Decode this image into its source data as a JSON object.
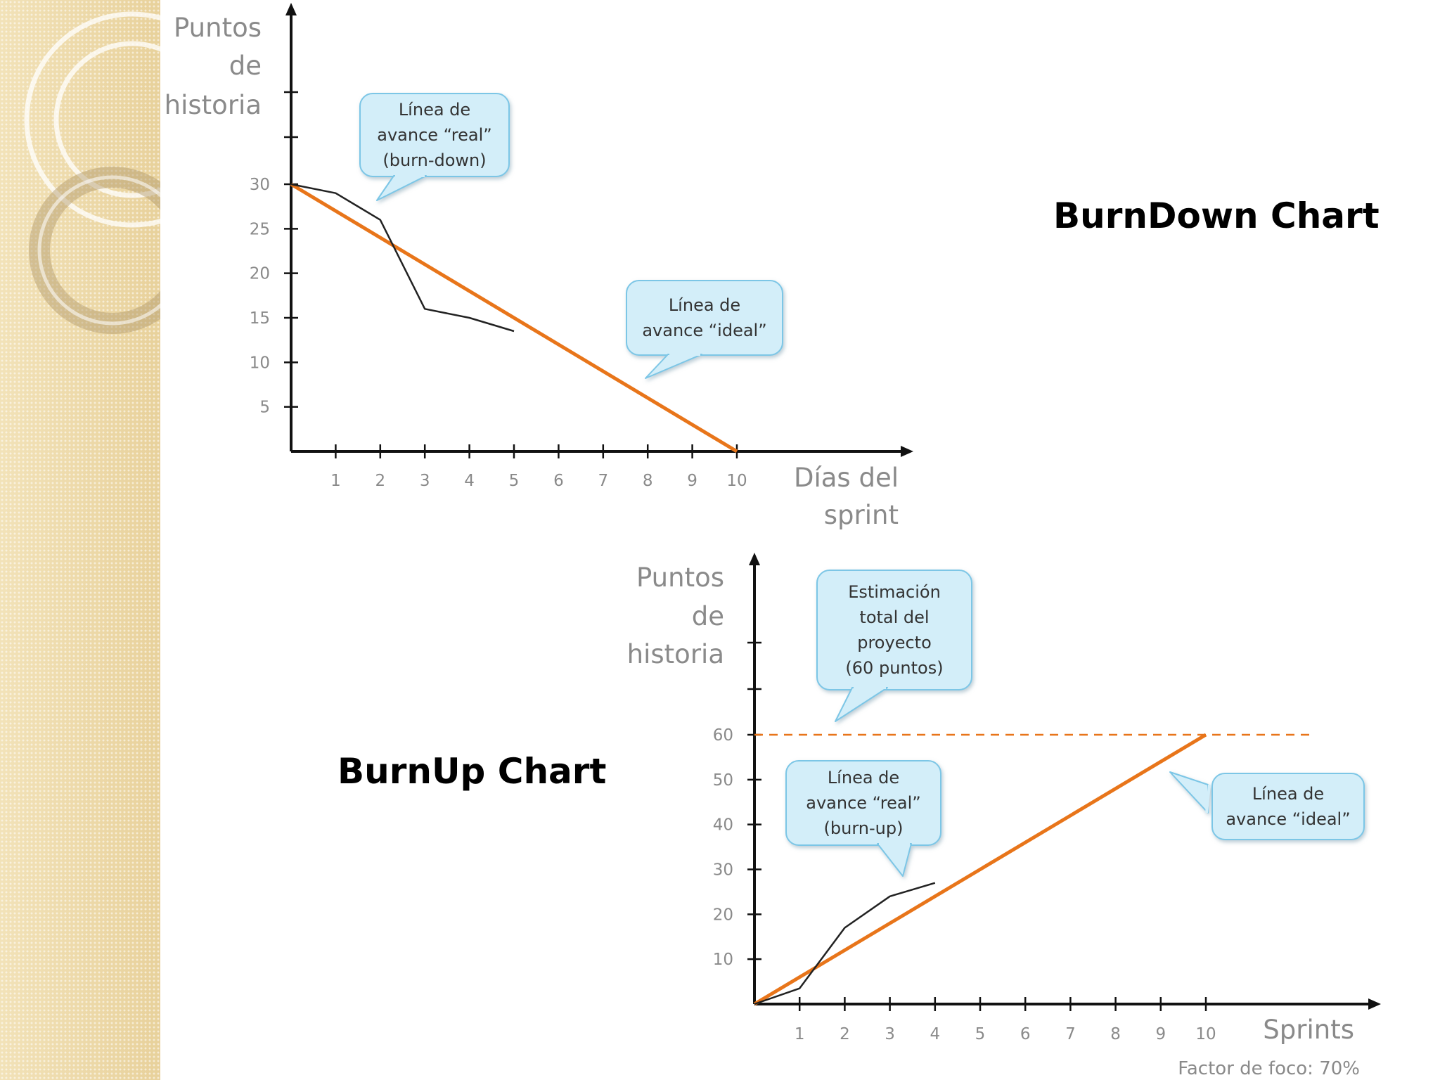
{
  "titles": {
    "burndown": "BurnDown Chart",
    "burnup": "BurnUp Chart"
  },
  "footnote": "Factor de foco: 70%",
  "colors": {
    "ideal_line": "#e8751a",
    "real_line": "#222222",
    "callout_fill": "#d3eef9",
    "callout_stroke": "#7cc6e6",
    "sidebar": "#efdcae"
  },
  "chart_data": [
    {
      "type": "line",
      "title": "BurnDown Chart",
      "ylabel": [
        "Puntos",
        "de",
        "historia"
      ],
      "xlabel": [
        "Días del",
        "sprint"
      ],
      "x": [
        0,
        1,
        2,
        3,
        4,
        5,
        6,
        7,
        8,
        9,
        10
      ],
      "x_ticks": [
        "1",
        "2",
        "3",
        "4",
        "5",
        "6",
        "7",
        "8",
        "9",
        "10"
      ],
      "y_ticks": [
        "5",
        "10",
        "15",
        "20",
        "25",
        "30"
      ],
      "xlim": [
        0,
        10
      ],
      "ylim": [
        0,
        30
      ],
      "series": [
        {
          "role": "ideal",
          "x": [
            0,
            10
          ],
          "values": [
            30,
            0
          ]
        },
        {
          "role": "real",
          "x": [
            0,
            1,
            2,
            3,
            4,
            5
          ],
          "values": [
            30,
            29,
            26,
            16,
            15,
            13.5
          ]
        }
      ],
      "annotations": [
        {
          "target": "real",
          "lines": [
            "Línea de",
            "avance “real”",
            "(burn-down)"
          ]
        },
        {
          "target": "ideal",
          "lines": [
            "Línea de",
            "avance “ideal”"
          ]
        }
      ]
    },
    {
      "type": "line",
      "title": "BurnUp Chart",
      "ylabel": [
        "Puntos",
        "de",
        "historia"
      ],
      "xlabel": [
        "Sprints"
      ],
      "x_ticks": [
        "1",
        "2",
        "3",
        "4",
        "5",
        "6",
        "7",
        "8",
        "9",
        "10"
      ],
      "y_ticks": [
        "10",
        "20",
        "30",
        "40",
        "50",
        "60"
      ],
      "xlim": [
        0,
        10
      ],
      "ylim": [
        0,
        60
      ],
      "series": [
        {
          "role": "ideal",
          "x": [
            0,
            10
          ],
          "values": [
            0,
            60
          ]
        },
        {
          "role": "real",
          "x": [
            0,
            1,
            2,
            3,
            4
          ],
          "values": [
            0,
            3.5,
            17,
            24,
            27
          ]
        },
        {
          "role": "total",
          "x": [
            0,
            12.4
          ],
          "values": [
            60,
            60
          ]
        }
      ],
      "annotations": [
        {
          "target": "total",
          "lines": [
            "Estimación",
            "total del",
            "proyecto",
            "(60 puntos)"
          ]
        },
        {
          "target": "real",
          "lines": [
            "Línea de",
            "avance “real”",
            "(burn-up)"
          ]
        },
        {
          "target": "ideal",
          "lines": [
            "Línea de",
            "avance “ideal”"
          ]
        }
      ]
    }
  ]
}
